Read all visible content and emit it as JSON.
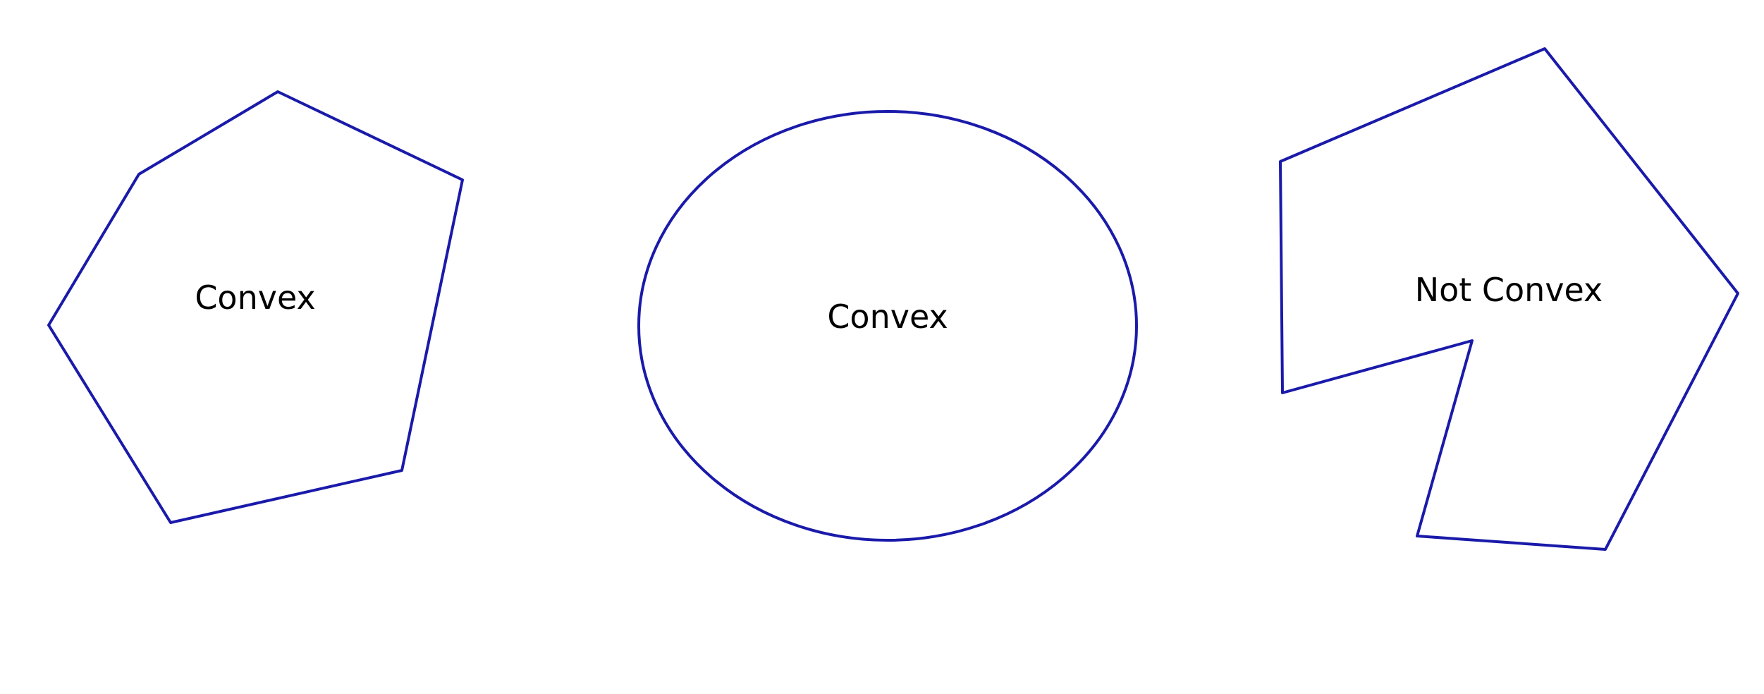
{
  "colors": {
    "stroke": "#1a1aaa",
    "text": "#000000",
    "background": "#ffffff"
  },
  "shapes": [
    {
      "kind": "polygon",
      "label": "Convex"
    },
    {
      "kind": "ellipse",
      "label": "Convex"
    },
    {
      "kind": "polygon",
      "label": "Not Convex"
    }
  ]
}
